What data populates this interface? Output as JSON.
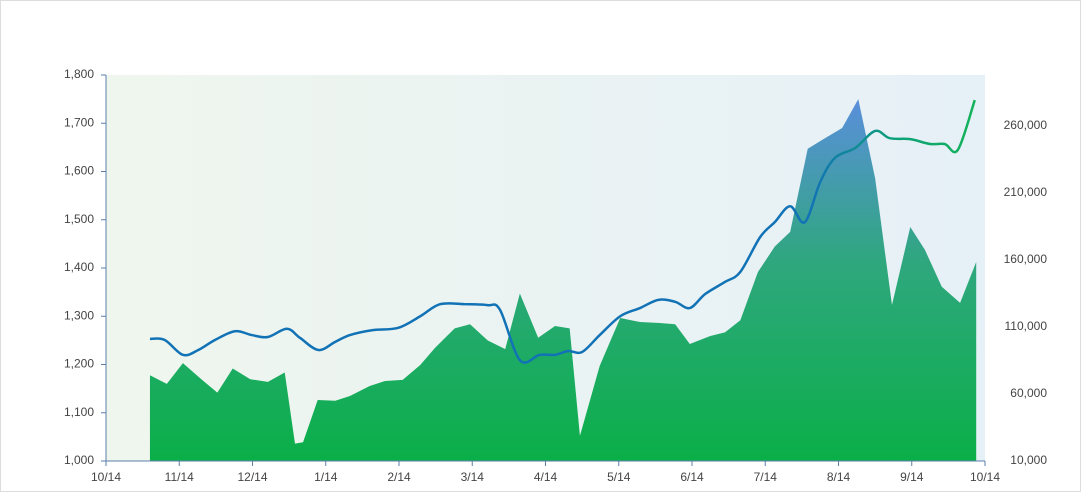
{
  "chart_data": {
    "type": "line-area",
    "xlim": [
      0,
      12
    ],
    "xticks": [
      {
        "value": 0,
        "label": "10/14"
      },
      {
        "value": 1,
        "label": "11/14"
      },
      {
        "value": 2,
        "label": "12/14"
      },
      {
        "value": 3,
        "label": "1/14"
      },
      {
        "value": 4,
        "label": "2/14"
      },
      {
        "value": 5,
        "label": "3/14"
      },
      {
        "value": 6,
        "label": "4/14"
      },
      {
        "value": 7,
        "label": "5/14"
      },
      {
        "value": 8,
        "label": "6/14"
      },
      {
        "value": 9,
        "label": "7/14"
      },
      {
        "value": 10,
        "label": "8/14"
      },
      {
        "value": 11,
        "label": "9/14"
      },
      {
        "value": 12,
        "label": "10/14"
      }
    ],
    "ylim": [
      1000,
      1800
    ],
    "yticks": [
      {
        "value": 1000,
        "label": "1,000"
      },
      {
        "value": 1100,
        "label": "1,100"
      },
      {
        "value": 1200,
        "label": "1,200"
      },
      {
        "value": 1300,
        "label": "1,300"
      },
      {
        "value": 1400,
        "label": "1,400"
      },
      {
        "value": 1500,
        "label": "1,500"
      },
      {
        "value": 1600,
        "label": "1,600"
      },
      {
        "value": 1700,
        "label": "1,700"
      },
      {
        "value": 1800,
        "label": "1,800"
      }
    ],
    "y2lim": [
      10000,
      298000
    ],
    "y2ticks": [
      {
        "value": 10000,
        "label": "10,000"
      },
      {
        "value": 60000,
        "label": "60,000"
      },
      {
        "value": 110000,
        "label": "110,000"
      },
      {
        "value": 160000,
        "label": "160,000"
      },
      {
        "value": 210000,
        "label": "210,000"
      },
      {
        "value": 260000,
        "label": "260,000"
      }
    ],
    "series": [
      {
        "kind": "area",
        "axis": "y2",
        "color": "#0aaf48",
        "x": [
          0.6,
          0.83,
          1.05,
          1.28,
          1.52,
          1.73,
          1.97,
          2.21,
          2.44,
          2.58,
          2.69,
          2.89,
          3.13,
          3.33,
          3.6,
          3.81,
          4.05,
          4.29,
          4.49,
          4.76,
          4.97,
          5.21,
          5.45,
          5.65,
          5.9,
          6.13,
          6.33,
          6.47,
          6.74,
          7.02,
          7.29,
          7.56,
          7.77,
          7.97,
          8.25,
          8.45,
          8.66,
          8.9,
          9.13,
          9.34,
          9.58,
          9.82,
          10.05,
          10.27,
          10.5,
          10.73,
          10.98,
          11.18,
          11.41,
          11.66,
          11.88
        ],
        "values": [
          74000,
          67500,
          83000,
          72000,
          61000,
          79000,
          71000,
          69000,
          76000,
          23000,
          24000,
          55500,
          55000,
          58500,
          66000,
          69700,
          70500,
          81600,
          94300,
          109000,
          112000,
          100000,
          93500,
          135000,
          102000,
          110700,
          109000,
          28700,
          81000,
          116700,
          113700,
          113000,
          112000,
          97300,
          103300,
          106000,
          115000,
          151000,
          170000,
          181000,
          243000,
          251000,
          258500,
          280000,
          221000,
          126400,
          184600,
          167500,
          140000,
          128000,
          158500
        ]
      },
      {
        "kind": "line",
        "color": "#1272b6",
        "x": [
          0.6,
          0.8,
          1.05,
          1.26,
          1.49,
          1.76,
          1.99,
          2.21,
          2.47,
          2.65,
          2.9,
          3.13,
          3.33,
          3.63,
          3.99,
          4.29,
          4.56,
          4.9,
          5.21,
          5.38,
          5.65,
          5.92,
          6.13,
          6.31,
          6.5,
          6.74,
          7.02,
          7.29,
          7.54,
          7.77,
          7.97,
          8.18,
          8.45,
          8.66,
          8.93,
          9.13,
          9.34,
          9.54,
          9.75,
          9.95,
          10.23,
          10.5,
          10.7,
          10.98,
          11.25,
          11.45,
          11.63,
          11.86
        ],
        "values": [
          1253,
          1251,
          1220,
          1230,
          1251,
          1269,
          1261,
          1257,
          1274,
          1255,
          1230,
          1247,
          1261,
          1271,
          1276,
          1300,
          1325,
          1325,
          1323,
          1313,
          1209,
          1220,
          1220,
          1228,
          1226,
          1261,
          1300,
          1317,
          1334,
          1330,
          1317,
          1346,
          1371,
          1392,
          1464,
          1495,
          1528,
          1495,
          1578,
          1628,
          1649,
          1684,
          1669,
          1667,
          1657,
          1657,
          1645,
          1748
        ]
      }
    ]
  }
}
